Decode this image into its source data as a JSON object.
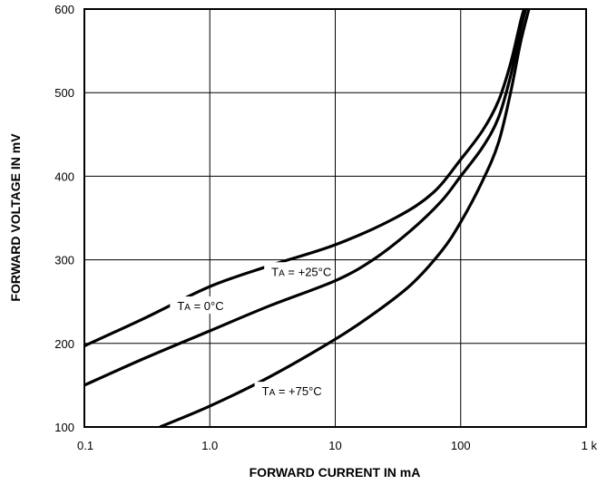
{
  "chart_data": {
    "type": "line",
    "xlabel": "FORWARD CURRENT IN mA",
    "ylabel": "FORWARD VOLTAGE IN mV",
    "x_scale": "log",
    "xlim": [
      0.1,
      1000
    ],
    "ylim": [
      100,
      600
    ],
    "grid": true,
    "x_ticks": [
      {
        "value": 0.1,
        "label": "0.1"
      },
      {
        "value": 1,
        "label": "1.0"
      },
      {
        "value": 10,
        "label": "10"
      },
      {
        "value": 100,
        "label": "100"
      },
      {
        "value": 1000,
        "label": "1 k"
      }
    ],
    "y_ticks": [
      {
        "value": 100,
        "label": "100"
      },
      {
        "value": 200,
        "label": "200"
      },
      {
        "value": 300,
        "label": "300"
      },
      {
        "value": 400,
        "label": "400"
      },
      {
        "value": 500,
        "label": "500"
      },
      {
        "value": 600,
        "label": "600"
      }
    ],
    "series": [
      {
        "name": "TA = 0°C",
        "label_main": "T",
        "label_sub": "A",
        "label_rest": " = 0°C",
        "x": [
          0.1,
          0.3,
          1,
          3,
          10,
          30,
          60,
          100,
          150,
          200,
          250,
          300,
          320
        ],
        "y": [
          197,
          230,
          268,
          293,
          318,
          350,
          380,
          420,
          455,
          490,
          535,
          585,
          600
        ]
      },
      {
        "name": "TA = +25°C",
        "label_main": "T",
        "label_sub": "A",
        "label_rest": " = +25°C",
        "x": [
          0.1,
          0.3,
          1,
          3,
          10,
          20,
          40,
          70,
          100,
          150,
          200,
          250,
          300,
          330
        ],
        "y": [
          150,
          182,
          215,
          245,
          275,
          300,
          335,
          370,
          400,
          435,
          470,
          520,
          575,
          600
        ]
      },
      {
        "name": "TA = +75°C",
        "label_main": "T",
        "label_sub": "A",
        "label_rest": " = +75°C",
        "x": [
          0.4,
          1,
          3,
          10,
          20,
          40,
          70,
          100,
          150,
          200,
          250,
          300,
          350
        ],
        "y": [
          100,
          125,
          160,
          205,
          235,
          270,
          310,
          345,
          395,
          440,
          500,
          560,
          600
        ]
      }
    ],
    "annotations": [
      {
        "series": 0,
        "x": 0.55,
        "y": 242
      },
      {
        "series": 1,
        "x": 3.1,
        "y": 283
      },
      {
        "series": 2,
        "x": 2.6,
        "y": 140
      }
    ]
  }
}
